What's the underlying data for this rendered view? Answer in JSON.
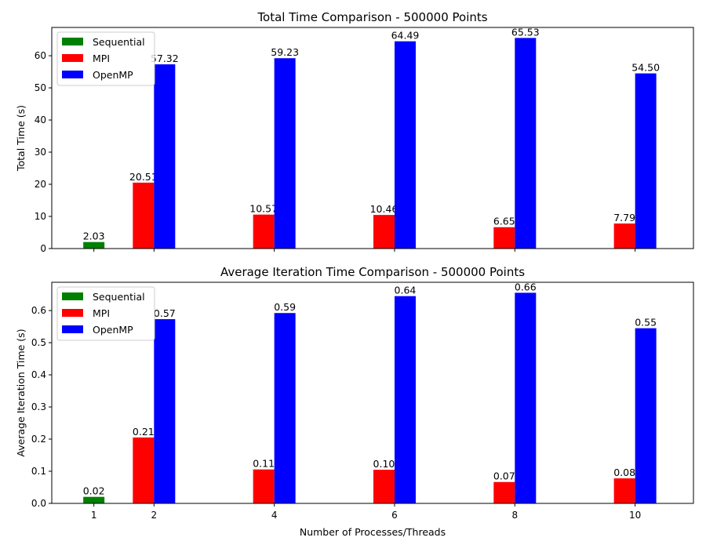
{
  "chart_data": [
    {
      "type": "bar",
      "title": "Total Time Comparison - 500000 Points",
      "xlabel": "",
      "ylabel": "Total Time (s)",
      "ylim": [
        0,
        68.8
      ],
      "yticks": [
        0,
        10,
        20,
        30,
        40,
        50,
        60
      ],
      "ytick_labels": [
        "0",
        "10",
        "20",
        "30",
        "40",
        "50",
        "60"
      ],
      "grid": false,
      "legend_position": "upper-left",
      "show_xtick_labels": false,
      "series": [
        {
          "name": "Sequential",
          "color": "#008000",
          "x": [
            1
          ],
          "values": [
            2.03
          ],
          "labels": [
            "2.03"
          ]
        },
        {
          "name": "MPI",
          "color": "#ff0000",
          "x": [
            2,
            4,
            6,
            8,
            10
          ],
          "values": [
            20.51,
            10.57,
            10.46,
            6.65,
            7.79
          ],
          "labels": [
            "20.51",
            "10.57",
            "10.46",
            "6.65",
            "7.79"
          ]
        },
        {
          "name": "OpenMP",
          "color": "#0000ff",
          "x": [
            2,
            4,
            6,
            8,
            10
          ],
          "values": [
            57.32,
            59.23,
            64.49,
            65.53,
            54.5
          ],
          "labels": [
            "57.32",
            "59.23",
            "64.49",
            "65.53",
            "54.50"
          ]
        }
      ]
    },
    {
      "type": "bar",
      "title": "Average Iteration Time Comparison - 500000 Points",
      "xlabel": "Number of Processes/Threads",
      "ylabel": "Average Iteration Time (s)",
      "ylim": [
        0,
        0.688
      ],
      "yticks": [
        0,
        0.1,
        0.2,
        0.3,
        0.4,
        0.5,
        0.6
      ],
      "ytick_labels": [
        "0.0",
        "0.1",
        "0.2",
        "0.3",
        "0.4",
        "0.5",
        "0.6"
      ],
      "grid": false,
      "legend_position": "upper-left",
      "show_xtick_labels": true,
      "series": [
        {
          "name": "Sequential",
          "color": "#008000",
          "x": [
            1
          ],
          "values": [
            0.0203
          ],
          "labels": [
            "0.02"
          ]
        },
        {
          "name": "MPI",
          "color": "#ff0000",
          "x": [
            2,
            4,
            6,
            8,
            10
          ],
          "values": [
            0.2051,
            0.1057,
            0.1046,
            0.0665,
            0.0779
          ],
          "labels": [
            "0.21",
            "0.11",
            "0.10",
            "0.07",
            "0.08"
          ]
        },
        {
          "name": "OpenMP",
          "color": "#0000ff",
          "x": [
            2,
            4,
            6,
            8,
            10
          ],
          "values": [
            0.5732,
            0.5923,
            0.6449,
            0.6553,
            0.545
          ],
          "labels": [
            "0.57",
            "0.59",
            "0.64",
            "0.66",
            "0.55"
          ]
        }
      ]
    }
  ],
  "x_axis": {
    "ticks": [
      1,
      2,
      4,
      6,
      8,
      10
    ],
    "tick_labels": [
      "1",
      "2",
      "4",
      "6",
      "8",
      "10"
    ],
    "xlim": [
      0.3,
      10.97
    ]
  }
}
